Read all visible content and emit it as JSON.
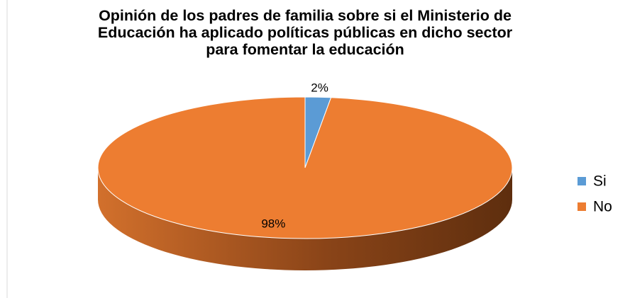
{
  "chart_data": {
    "type": "pie3d",
    "title": "Opinión de los padres de familia sobre si el Ministerio de Educación ha aplicado políticas públicas en dicho sector para fomentar la educación",
    "categories": [
      "Si",
      "No"
    ],
    "values": [
      2,
      98
    ],
    "value_labels": [
      "2%",
      "98%"
    ],
    "colors": [
      "#5b9bd5",
      "#ed7d31"
    ],
    "legend": "right"
  }
}
